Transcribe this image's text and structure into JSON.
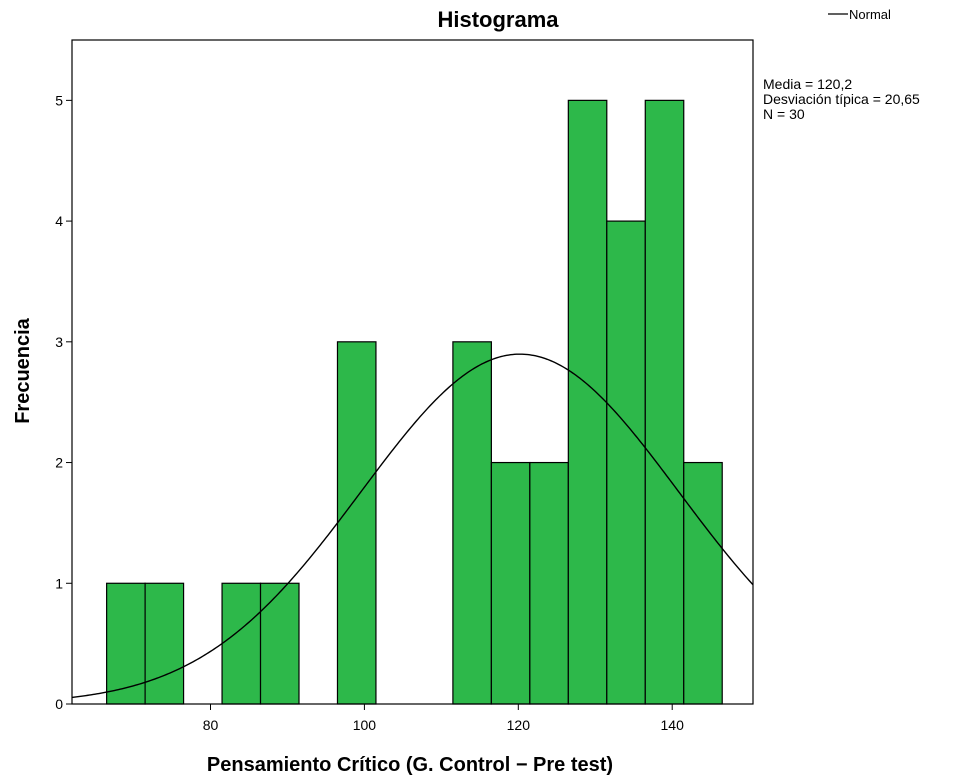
{
  "chart_data": {
    "type": "bar",
    "title": "Histograma",
    "xlabel": "Pensamiento Crítico  (G. Control − Pre test)",
    "ylabel": "Frecuencia",
    "xlim": [
      62,
      150.5
    ],
    "ylim": [
      0,
      5.5
    ],
    "xticks": [
      80,
      100,
      120,
      140
    ],
    "yticks": [
      0,
      1,
      2,
      3,
      4,
      5
    ],
    "bin_width": 5,
    "bins": [
      {
        "start": 66.5,
        "end": 71.5,
        "count": 1
      },
      {
        "start": 71.5,
        "end": 76.5,
        "count": 1
      },
      {
        "start": 81.5,
        "end": 86.5,
        "count": 1
      },
      {
        "start": 86.5,
        "end": 91.5,
        "count": 1
      },
      {
        "start": 96.5,
        "end": 101.5,
        "count": 3
      },
      {
        "start": 111.5,
        "end": 116.5,
        "count": 3
      },
      {
        "start": 116.5,
        "end": 121.5,
        "count": 2
      },
      {
        "start": 121.5,
        "end": 126.5,
        "count": 2
      },
      {
        "start": 126.5,
        "end": 131.5,
        "count": 5
      },
      {
        "start": 131.5,
        "end": 136.5,
        "count": 4
      },
      {
        "start": 136.5,
        "end": 141.5,
        "count": 5
      },
      {
        "start": 141.5,
        "end": 146.5,
        "count": 2
      }
    ],
    "normal_curve": {
      "mean": 120.2,
      "sd": 20.65,
      "n": 30
    },
    "bar_color": "#2db84a",
    "grid": false,
    "legend_position": "top-right"
  },
  "stats": {
    "media": "Media = 120,2",
    "desviacion": "Desviación típica = 20,65",
    "n": "N = 30"
  },
  "legend": {
    "label": "Normal"
  }
}
